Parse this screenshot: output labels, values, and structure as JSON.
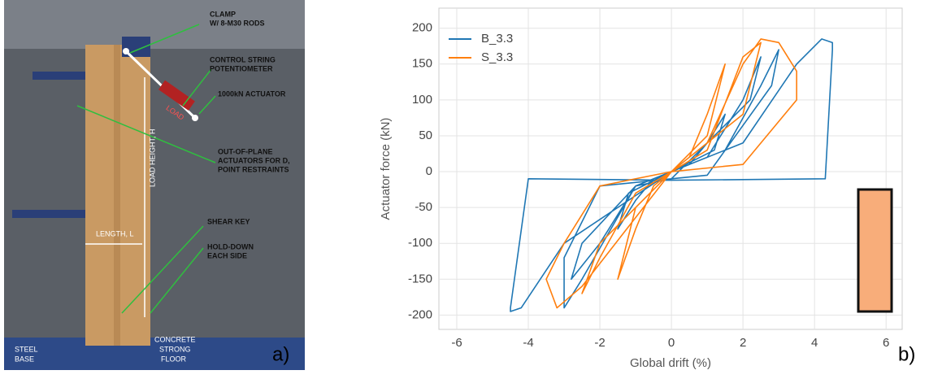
{
  "figure": {
    "panel_a": "a)",
    "panel_b": "b)",
    "annotations": [
      "CLAMP",
      "W/ 8-M30 RODS",
      "CONTROL STRING",
      "POTENTIOMETER",
      "1000kN  ACTUATOR",
      "OUT-OF-PLANE",
      "ACTUATORS FOR D,",
      "POINT RESTRAINTS",
      "SHEAR KEY",
      "HOLD-DOWN",
      "EACH SIDE"
    ],
    "photo_labels": [
      "LOAD HEIGHT, H",
      "LENGTH, L",
      "STEEL",
      "BASE",
      "CONCRETE",
      "STRONG",
      "FLOOR",
      "LOAD"
    ]
  },
  "chart_data": {
    "type": "line",
    "xlabel": "Global drift (%)",
    "ylabel": "Actuator force (kN)",
    "xlim": [
      -6.5,
      6.45
    ],
    "ylim": [
      -220,
      228
    ],
    "xticks": [
      -6,
      -4,
      -2,
      0,
      2,
      4,
      6
    ],
    "yticks": [
      -200,
      -150,
      -100,
      -50,
      0,
      50,
      100,
      150,
      200
    ],
    "grid": true,
    "legend": "upper left",
    "series": [
      {
        "name": "B_3.3",
        "color": "#1f77b4",
        "x": [
          0,
          0.5,
          1,
          1.5,
          1.2,
          0,
          -0.5,
          -1,
          -1.5,
          -1.2,
          0,
          1,
          2,
          2.5,
          2.2,
          0,
          -1,
          -2,
          -2.8,
          -2.5,
          -1,
          0,
          1.5,
          2.5,
          3,
          2.8,
          1,
          0,
          -2,
          -3,
          -3,
          -2.5,
          -1,
          0,
          2,
          3.5,
          4.2,
          4.5,
          4.5,
          4.3,
          0,
          -4,
          -4.5,
          -4.5,
          -4.2,
          -3,
          0
        ],
        "values": [
          0,
          10,
          40,
          80,
          30,
          0,
          -10,
          -40,
          -80,
          -30,
          0,
          20,
          100,
          160,
          100,
          -10,
          -20,
          -100,
          -150,
          -100,
          -20,
          0,
          30,
          120,
          170,
          120,
          -5,
          -10,
          -20,
          -120,
          -190,
          -150,
          -20,
          0,
          40,
          150,
          185,
          180,
          170,
          -10,
          -12,
          -10,
          -190,
          -195,
          -190,
          -100,
          0
        ]
      },
      {
        "name": "S_3.3",
        "color": "#ff7f0e",
        "x": [
          0,
          0.5,
          1,
          1.5,
          1,
          0,
          -0.5,
          -1,
          -1.5,
          -1,
          0,
          1,
          2,
          2.5,
          2,
          0,
          -1,
          -2,
          -2.5,
          -2,
          0,
          1,
          2,
          2.5,
          3,
          3.5,
          3.5,
          2,
          0,
          -2,
          -3,
          -3.5,
          -3.2,
          -2.5,
          0
        ],
        "values": [
          0,
          20,
          80,
          150,
          50,
          0,
          -20,
          -80,
          -150,
          -50,
          0,
          30,
          160,
          180,
          80,
          0,
          -30,
          -120,
          -170,
          -100,
          0,
          40,
          150,
          185,
          180,
          140,
          100,
          10,
          0,
          -20,
          -100,
          -150,
          -190,
          -160,
          0
        ]
      }
    ]
  }
}
